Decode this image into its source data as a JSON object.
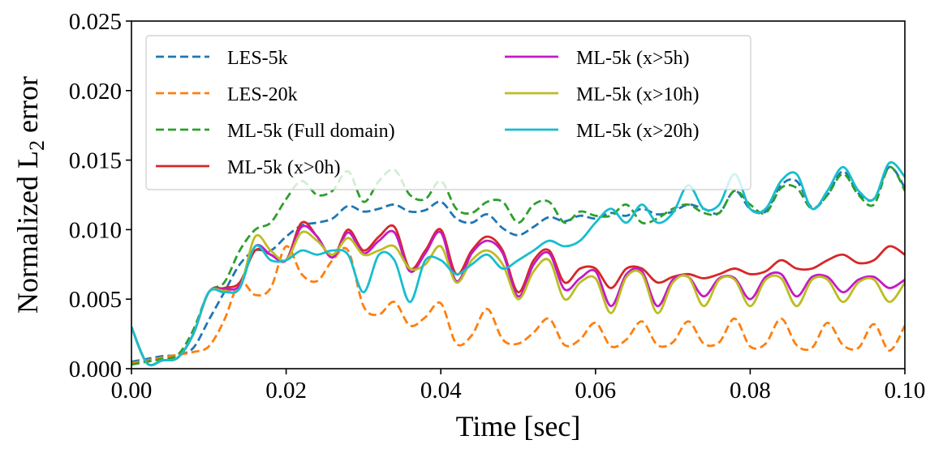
{
  "chart_data": {
    "type": "line",
    "title": "",
    "xlabel": "Time [sec]",
    "ylabel": "Normalized L",
    "ylabel_subscript": "2",
    "ylabel_suffix": " error",
    "xlim": [
      0.0,
      0.1
    ],
    "ylim": [
      0.0,
      0.025
    ],
    "xticks": [
      0.0,
      0.02,
      0.04,
      0.06,
      0.08,
      0.1
    ],
    "xtick_labels": [
      "0.00",
      "0.02",
      "0.04",
      "0.06",
      "0.08",
      "0.10"
    ],
    "yticks": [
      0.0,
      0.005,
      0.01,
      0.015,
      0.02,
      0.025
    ],
    "ytick_labels": [
      "0.000",
      "0.005",
      "0.010",
      "0.015",
      "0.020",
      "0.025"
    ],
    "grid": false,
    "legend_position": "top-left",
    "series": [
      {
        "name": "LES-5k",
        "color": "#1f77b4",
        "style": "dashed",
        "x": [
          0,
          0.002,
          0.004,
          0.006,
          0.008,
          0.01,
          0.012,
          0.014,
          0.016,
          0.018,
          0.02,
          0.022,
          0.024,
          0.026,
          0.028,
          0.03,
          0.032,
          0.034,
          0.036,
          0.038,
          0.04,
          0.042,
          0.044,
          0.046,
          0.048,
          0.05,
          0.052,
          0.054,
          0.056,
          0.058,
          0.06,
          0.062,
          0.064,
          0.066,
          0.068,
          0.07,
          0.072,
          0.074,
          0.076,
          0.078,
          0.08,
          0.082,
          0.084,
          0.086,
          0.088,
          0.09,
          0.092,
          0.094,
          0.096,
          0.098,
          0.1
        ],
        "y": [
          0.0005,
          0.0007,
          0.0009,
          0.001,
          0.0015,
          0.0035,
          0.0055,
          0.0075,
          0.0085,
          0.0085,
          0.0095,
          0.0103,
          0.0105,
          0.0108,
          0.0117,
          0.0113,
          0.0115,
          0.0118,
          0.0113,
          0.0114,
          0.012,
          0.0108,
          0.0105,
          0.0111,
          0.0101,
          0.0096,
          0.0102,
          0.0109,
          0.0106,
          0.011,
          0.0108,
          0.0112,
          0.011,
          0.0115,
          0.0111,
          0.0113,
          0.0118,
          0.0115,
          0.0112,
          0.0128,
          0.0115,
          0.0113,
          0.0132,
          0.0135,
          0.0116,
          0.0125,
          0.0142,
          0.0126,
          0.0122,
          0.0145,
          0.013
        ]
      },
      {
        "name": "LES-20k",
        "color": "#ff7f0e",
        "style": "dashed",
        "x": [
          0,
          0.002,
          0.004,
          0.006,
          0.008,
          0.01,
          0.012,
          0.014,
          0.016,
          0.018,
          0.02,
          0.022,
          0.024,
          0.026,
          0.028,
          0.03,
          0.032,
          0.034,
          0.036,
          0.038,
          0.04,
          0.042,
          0.044,
          0.046,
          0.048,
          0.05,
          0.052,
          0.054,
          0.056,
          0.058,
          0.06,
          0.062,
          0.064,
          0.066,
          0.068,
          0.07,
          0.072,
          0.074,
          0.076,
          0.078,
          0.08,
          0.082,
          0.084,
          0.086,
          0.088,
          0.09,
          0.092,
          0.094,
          0.096,
          0.098,
          0.1
        ],
        "y": [
          0.0004,
          0.0006,
          0.0008,
          0.001,
          0.0012,
          0.0016,
          0.0035,
          0.0062,
          0.0053,
          0.0058,
          0.0088,
          0.0068,
          0.0063,
          0.0078,
          0.0085,
          0.0045,
          0.0039,
          0.0048,
          0.0031,
          0.0037,
          0.0047,
          0.0018,
          0.0024,
          0.0043,
          0.0021,
          0.0018,
          0.0026,
          0.0036,
          0.0017,
          0.0021,
          0.0033,
          0.0016,
          0.0021,
          0.0034,
          0.0017,
          0.0019,
          0.0034,
          0.0018,
          0.0019,
          0.0036,
          0.0016,
          0.0018,
          0.0036,
          0.0017,
          0.0015,
          0.0033,
          0.0017,
          0.0015,
          0.0032,
          0.0013,
          0.0031
        ]
      },
      {
        "name": "ML-5k (Full domain)",
        "color": "#2ca02c",
        "style": "dashed",
        "x": [
          0,
          0.002,
          0.004,
          0.006,
          0.008,
          0.01,
          0.012,
          0.014,
          0.016,
          0.018,
          0.02,
          0.022,
          0.024,
          0.026,
          0.028,
          0.03,
          0.032,
          0.034,
          0.036,
          0.038,
          0.04,
          0.042,
          0.044,
          0.046,
          0.048,
          0.05,
          0.052,
          0.054,
          0.056,
          0.058,
          0.06,
          0.062,
          0.064,
          0.066,
          0.068,
          0.07,
          0.072,
          0.074,
          0.076,
          0.078,
          0.08,
          0.082,
          0.084,
          0.086,
          0.088,
          0.09,
          0.092,
          0.094,
          0.096,
          0.098,
          0.1
        ],
        "y": [
          0.0003,
          0.0005,
          0.0007,
          0.001,
          0.0028,
          0.0055,
          0.0062,
          0.0085,
          0.01,
          0.0105,
          0.0122,
          0.0135,
          0.0125,
          0.0128,
          0.0142,
          0.012,
          0.0135,
          0.0143,
          0.0125,
          0.0122,
          0.0135,
          0.0115,
          0.0112,
          0.012,
          0.012,
          0.0105,
          0.0118,
          0.012,
          0.0105,
          0.0113,
          0.011,
          0.011,
          0.0118,
          0.0105,
          0.0108,
          0.0115,
          0.0118,
          0.0112,
          0.0112,
          0.0128,
          0.0118,
          0.0112,
          0.013,
          0.013,
          0.0115,
          0.0125,
          0.014,
          0.0125,
          0.0118,
          0.0145,
          0.0128
        ]
      },
      {
        "name": "ML-5k (x>0h)",
        "color": "#d62728",
        "style": "solid",
        "x": [
          0,
          0.002,
          0.004,
          0.006,
          0.008,
          0.01,
          0.012,
          0.014,
          0.016,
          0.018,
          0.02,
          0.022,
          0.024,
          0.026,
          0.028,
          0.03,
          0.032,
          0.034,
          0.036,
          0.038,
          0.04,
          0.042,
          0.044,
          0.046,
          0.048,
          0.05,
          0.052,
          0.054,
          0.056,
          0.058,
          0.06,
          0.062,
          0.064,
          0.066,
          0.068,
          0.07,
          0.072,
          0.074,
          0.076,
          0.078,
          0.08,
          0.082,
          0.084,
          0.086,
          0.088,
          0.09,
          0.092,
          0.094,
          0.096,
          0.098,
          0.1
        ],
        "y": [
          0.003,
          0.0004,
          0.0006,
          0.0008,
          0.0025,
          0.0055,
          0.0058,
          0.0062,
          0.0085,
          0.0082,
          0.0078,
          0.0105,
          0.0095,
          0.008,
          0.01,
          0.0085,
          0.0095,
          0.0102,
          0.0072,
          0.0085,
          0.01,
          0.0068,
          0.0085,
          0.0095,
          0.0085,
          0.0055,
          0.0078,
          0.0085,
          0.0062,
          0.0072,
          0.0072,
          0.0058,
          0.0072,
          0.0072,
          0.0062,
          0.0066,
          0.0068,
          0.0065,
          0.0068,
          0.0072,
          0.0068,
          0.007,
          0.0078,
          0.0072,
          0.0072,
          0.0078,
          0.0082,
          0.0076,
          0.0078,
          0.0088,
          0.0082
        ]
      },
      {
        "name": "ML-5k (x>5h)",
        "color": "#c41bc4",
        "style": "solid",
        "x": [
          0,
          0.002,
          0.004,
          0.006,
          0.008,
          0.01,
          0.012,
          0.014,
          0.016,
          0.018,
          0.02,
          0.022,
          0.024,
          0.026,
          0.028,
          0.03,
          0.032,
          0.034,
          0.036,
          0.038,
          0.04,
          0.042,
          0.044,
          0.046,
          0.048,
          0.05,
          0.052,
          0.054,
          0.056,
          0.058,
          0.06,
          0.062,
          0.064,
          0.066,
          0.068,
          0.07,
          0.072,
          0.074,
          0.076,
          0.078,
          0.08,
          0.082,
          0.084,
          0.086,
          0.088,
          0.09,
          0.092,
          0.094,
          0.096,
          0.098,
          0.1
        ],
        "y": [
          0.003,
          0.0004,
          0.0006,
          0.0008,
          0.0025,
          0.0055,
          0.0057,
          0.006,
          0.0088,
          0.0082,
          0.0078,
          0.0102,
          0.0095,
          0.008,
          0.0098,
          0.0083,
          0.0092,
          0.0098,
          0.007,
          0.0083,
          0.0098,
          0.0063,
          0.0083,
          0.0092,
          0.0083,
          0.0052,
          0.0075,
          0.0083,
          0.0057,
          0.0065,
          0.007,
          0.0045,
          0.0068,
          0.007,
          0.0045,
          0.0064,
          0.0066,
          0.0052,
          0.0065,
          0.0065,
          0.005,
          0.0066,
          0.0068,
          0.0052,
          0.0066,
          0.0066,
          0.0055,
          0.0064,
          0.0066,
          0.0058,
          0.0064
        ]
      },
      {
        "name": "ML-5k (x>10h)",
        "color": "#bcbd22",
        "style": "solid",
        "x": [
          0,
          0.002,
          0.004,
          0.006,
          0.008,
          0.01,
          0.012,
          0.014,
          0.016,
          0.018,
          0.02,
          0.022,
          0.024,
          0.026,
          0.028,
          0.03,
          0.032,
          0.034,
          0.036,
          0.038,
          0.04,
          0.042,
          0.044,
          0.046,
          0.048,
          0.05,
          0.052,
          0.054,
          0.056,
          0.058,
          0.06,
          0.062,
          0.064,
          0.066,
          0.068,
          0.07,
          0.072,
          0.074,
          0.076,
          0.078,
          0.08,
          0.082,
          0.084,
          0.086,
          0.088,
          0.09,
          0.092,
          0.094,
          0.096,
          0.098,
          0.1
        ],
        "y": [
          0.003,
          0.0004,
          0.0006,
          0.0008,
          0.0025,
          0.0055,
          0.0056,
          0.0058,
          0.0095,
          0.0085,
          0.0078,
          0.0098,
          0.0092,
          0.0082,
          0.0094,
          0.0082,
          0.0085,
          0.0088,
          0.0072,
          0.0075,
          0.0088,
          0.0062,
          0.0078,
          0.0085,
          0.0075,
          0.005,
          0.007,
          0.0078,
          0.005,
          0.0062,
          0.0065,
          0.004,
          0.0066,
          0.0068,
          0.004,
          0.0062,
          0.0066,
          0.0045,
          0.0064,
          0.0064,
          0.0045,
          0.0064,
          0.0065,
          0.0045,
          0.0064,
          0.0064,
          0.0048,
          0.0062,
          0.0064,
          0.0048,
          0.0062
        ]
      },
      {
        "name": "ML-5k (x>20h)",
        "color": "#17becf",
        "style": "solid",
        "x": [
          0,
          0.002,
          0.004,
          0.006,
          0.008,
          0.01,
          0.012,
          0.014,
          0.016,
          0.018,
          0.02,
          0.022,
          0.024,
          0.026,
          0.028,
          0.03,
          0.032,
          0.034,
          0.036,
          0.038,
          0.04,
          0.042,
          0.044,
          0.046,
          0.048,
          0.05,
          0.052,
          0.054,
          0.056,
          0.058,
          0.06,
          0.062,
          0.064,
          0.066,
          0.068,
          0.07,
          0.072,
          0.074,
          0.076,
          0.078,
          0.08,
          0.082,
          0.084,
          0.086,
          0.088,
          0.09,
          0.092,
          0.094,
          0.096,
          0.098,
          0.1
        ],
        "y": [
          0.003,
          0.0004,
          0.0006,
          0.0008,
          0.0025,
          0.0055,
          0.0055,
          0.0058,
          0.0088,
          0.0078,
          0.0078,
          0.0085,
          0.0082,
          0.0085,
          0.0082,
          0.0055,
          0.0082,
          0.0078,
          0.0048,
          0.0078,
          0.0078,
          0.0068,
          0.0075,
          0.0082,
          0.0072,
          0.0078,
          0.0085,
          0.0092,
          0.0088,
          0.0092,
          0.0105,
          0.0115,
          0.0105,
          0.0118,
          0.0105,
          0.0112,
          0.0132,
          0.0115,
          0.0118,
          0.014,
          0.0115,
          0.0115,
          0.0135,
          0.014,
          0.0115,
          0.0128,
          0.0145,
          0.0128,
          0.0122,
          0.0148,
          0.0138
        ]
      }
    ]
  }
}
